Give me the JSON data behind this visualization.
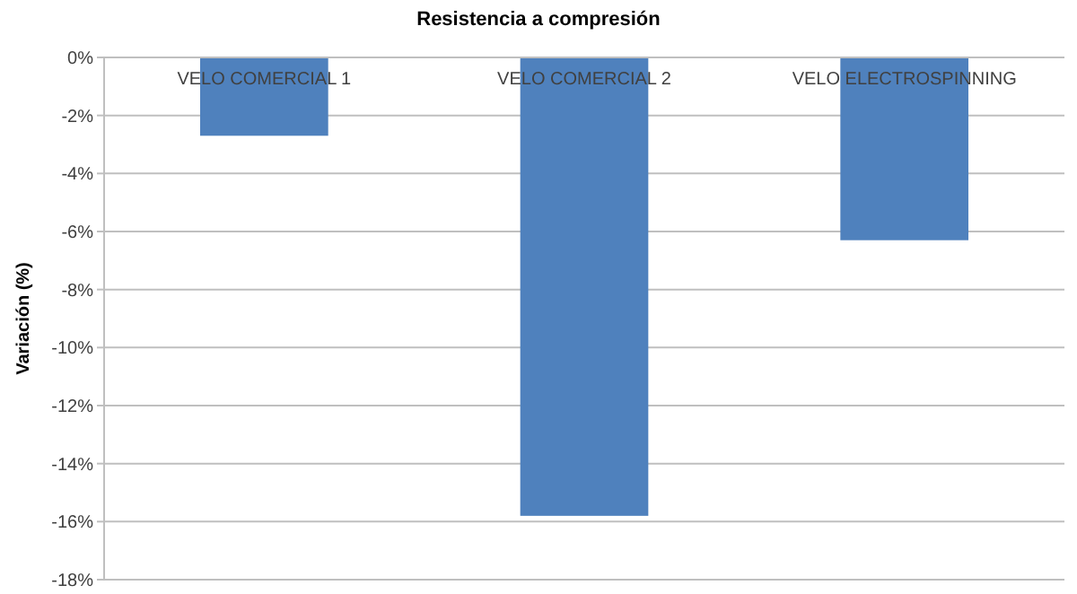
{
  "chart_data": {
    "type": "bar",
    "title": "Resistencia a compresión",
    "ylabel": "Variación (%)",
    "categories": [
      "VELO COMERCIAL 1",
      "VELO COMERCIAL 2",
      "VELO ELECTROSPINNING"
    ],
    "values": [
      -2.7,
      -15.8,
      -6.3
    ],
    "color": "#4f81bd",
    "ylim": [
      -18,
      0
    ],
    "yticks": [
      {
        "value": 0,
        "label": "0%"
      },
      {
        "value": -2,
        "label": "-2%"
      },
      {
        "value": -4,
        "label": "-4%"
      },
      {
        "value": -6,
        "label": "-6%"
      },
      {
        "value": -8,
        "label": "-8%"
      },
      {
        "value": -10,
        "label": "-10%"
      },
      {
        "value": -12,
        "label": "-12%"
      },
      {
        "value": -14,
        "label": "-14%"
      },
      {
        "value": -16,
        "label": "-16%"
      },
      {
        "value": -18,
        "label": "-18%"
      }
    ],
    "grid": true
  }
}
